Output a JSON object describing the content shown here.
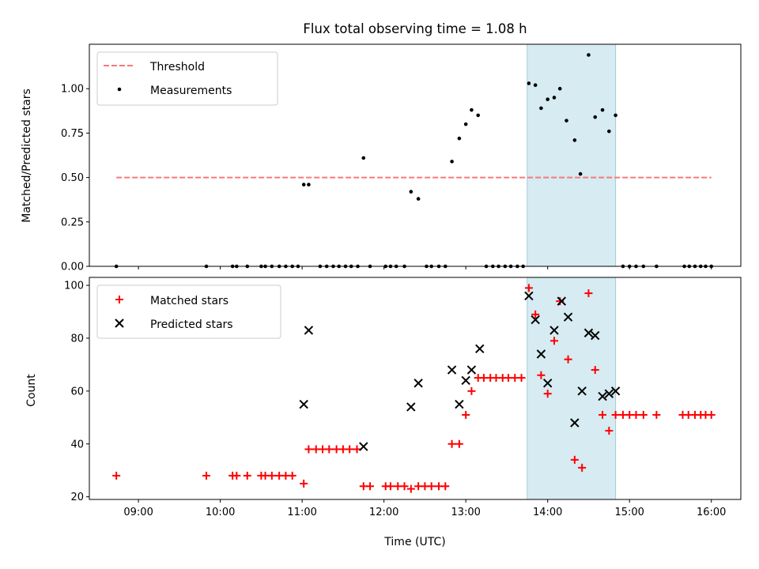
{
  "chart_data": [
    {
      "type": "scatter",
      "title": "Flux total observing time = 1.08 h",
      "ylabel": "Matched/Predicted stars",
      "xlabel": "",
      "xlim": [
        8.4,
        16.36
      ],
      "ylim": [
        0,
        1.25
      ],
      "yticks": [
        0.0,
        0.25,
        0.5,
        0.75,
        1.0
      ],
      "ytick_labels": [
        "0.00",
        "0.25",
        "0.50",
        "0.75",
        "1.00"
      ],
      "grid": false,
      "legend_placement": "top-left",
      "highlight_span": [
        13.75,
        14.83
      ],
      "threshold": {
        "name": "Threshold",
        "y": 0.5,
        "x_range": [
          8.73,
          16.0
        ],
        "color": "#f87878"
      },
      "series": [
        {
          "name": "Measurements",
          "color": "#000000",
          "marker": "dot",
          "points": [
            [
              8.73,
              0
            ],
            [
              9.83,
              0
            ],
            [
              10.15,
              0
            ],
            [
              10.2,
              0
            ],
            [
              10.33,
              0
            ],
            [
              10.5,
              0
            ],
            [
              10.55,
              0
            ],
            [
              10.63,
              0
            ],
            [
              10.72,
              0
            ],
            [
              10.8,
              0
            ],
            [
              10.88,
              0
            ],
            [
              10.95,
              0
            ],
            [
              11.02,
              0.46
            ],
            [
              11.08,
              0.46
            ],
            [
              11.22,
              0
            ],
            [
              11.3,
              0
            ],
            [
              11.38,
              0
            ],
            [
              11.45,
              0
            ],
            [
              11.53,
              0
            ],
            [
              11.6,
              0
            ],
            [
              11.68,
              0
            ],
            [
              11.75,
              0.61
            ],
            [
              11.83,
              0
            ],
            [
              12.02,
              0
            ],
            [
              12.08,
              0
            ],
            [
              12.15,
              0
            ],
            [
              12.25,
              0
            ],
            [
              12.33,
              0.42
            ],
            [
              12.42,
              0.38
            ],
            [
              12.52,
              0
            ],
            [
              12.58,
              0
            ],
            [
              12.67,
              0
            ],
            [
              12.75,
              0
            ],
            [
              12.83,
              0.59
            ],
            [
              12.92,
              0.72
            ],
            [
              13.0,
              0.8
            ],
            [
              13.07,
              0.88
            ],
            [
              13.15,
              0.85
            ],
            [
              13.25,
              0
            ],
            [
              13.33,
              0
            ],
            [
              13.4,
              0
            ],
            [
              13.48,
              0
            ],
            [
              13.55,
              0
            ],
            [
              13.63,
              0
            ],
            [
              13.7,
              0
            ],
            [
              13.77,
              1.03
            ],
            [
              13.85,
              1.02
            ],
            [
              13.92,
              0.89
            ],
            [
              14.0,
              0.94
            ],
            [
              14.08,
              0.95
            ],
            [
              14.15,
              1.0
            ],
            [
              14.23,
              0.82
            ],
            [
              14.33,
              0.71
            ],
            [
              14.4,
              0.52
            ],
            [
              14.5,
              1.19
            ],
            [
              14.58,
              0.84
            ],
            [
              14.67,
              0.88
            ],
            [
              14.75,
              0.76
            ],
            [
              14.83,
              0.85
            ],
            [
              14.92,
              0
            ],
            [
              15.0,
              0
            ],
            [
              15.08,
              0
            ],
            [
              15.17,
              0
            ],
            [
              15.33,
              0
            ],
            [
              15.67,
              0
            ],
            [
              15.73,
              0
            ],
            [
              15.8,
              0
            ],
            [
              15.87,
              0
            ],
            [
              15.93,
              0
            ],
            [
              16.0,
              0
            ]
          ]
        }
      ]
    },
    {
      "type": "scatter",
      "title": "",
      "ylabel": "Count",
      "xlabel": "Time (UTC)",
      "xlim": [
        8.4,
        16.36
      ],
      "ylim": [
        19,
        103
      ],
      "xticks": [
        9,
        10,
        11,
        12,
        13,
        14,
        15,
        16
      ],
      "xtick_labels": [
        "09:00",
        "10:00",
        "11:00",
        "12:00",
        "13:00",
        "14:00",
        "15:00",
        "16:00"
      ],
      "yticks": [
        20,
        40,
        60,
        80,
        100
      ],
      "ytick_labels": [
        "20",
        "40",
        "60",
        "80",
        "100"
      ],
      "grid": false,
      "legend_placement": "top-left",
      "highlight_span": [
        13.75,
        14.83
      ],
      "series": [
        {
          "name": "Matched stars",
          "color": "#ff0000",
          "marker": "plus",
          "points": [
            [
              8.73,
              28
            ],
            [
              9.83,
              28
            ],
            [
              10.15,
              28
            ],
            [
              10.2,
              28
            ],
            [
              10.33,
              28
            ],
            [
              10.5,
              28
            ],
            [
              10.55,
              28
            ],
            [
              10.63,
              28
            ],
            [
              10.72,
              28
            ],
            [
              10.8,
              28
            ],
            [
              10.88,
              28
            ],
            [
              11.02,
              25
            ],
            [
              11.08,
              38
            ],
            [
              11.17,
              38
            ],
            [
              11.25,
              38
            ],
            [
              11.33,
              38
            ],
            [
              11.42,
              38
            ],
            [
              11.5,
              38
            ],
            [
              11.58,
              38
            ],
            [
              11.67,
              38
            ],
            [
              11.75,
              24
            ],
            [
              11.83,
              24
            ],
            [
              12.02,
              24
            ],
            [
              12.08,
              24
            ],
            [
              12.17,
              24
            ],
            [
              12.25,
              24
            ],
            [
              12.33,
              23
            ],
            [
              12.42,
              24
            ],
            [
              12.5,
              24
            ],
            [
              12.58,
              24
            ],
            [
              12.67,
              24
            ],
            [
              12.75,
              24
            ],
            [
              12.83,
              40
            ],
            [
              12.92,
              40
            ],
            [
              13.0,
              51
            ],
            [
              13.07,
              60
            ],
            [
              13.15,
              65
            ],
            [
              13.22,
              65
            ],
            [
              13.3,
              65
            ],
            [
              13.37,
              65
            ],
            [
              13.45,
              65
            ],
            [
              13.52,
              65
            ],
            [
              13.6,
              65
            ],
            [
              13.68,
              65
            ],
            [
              13.77,
              99
            ],
            [
              13.85,
              89
            ],
            [
              13.92,
              66
            ],
            [
              14.0,
              59
            ],
            [
              14.08,
              79
            ],
            [
              14.15,
              94
            ],
            [
              14.25,
              72
            ],
            [
              14.33,
              34
            ],
            [
              14.42,
              31
            ],
            [
              14.5,
              97
            ],
            [
              14.58,
              68
            ],
            [
              14.67,
              51
            ],
            [
              14.75,
              45
            ],
            [
              14.83,
              51
            ],
            [
              14.92,
              51
            ],
            [
              15.0,
              51
            ],
            [
              15.08,
              51
            ],
            [
              15.17,
              51
            ],
            [
              15.33,
              51
            ],
            [
              15.65,
              51
            ],
            [
              15.72,
              51
            ],
            [
              15.8,
              51
            ],
            [
              15.87,
              51
            ],
            [
              15.93,
              51
            ],
            [
              16.0,
              51
            ]
          ]
        },
        {
          "name": "Predicted stars",
          "color": "#000000",
          "marker": "x",
          "points": [
            [
              11.02,
              55
            ],
            [
              11.08,
              83
            ],
            [
              11.75,
              39
            ],
            [
              12.33,
              54
            ],
            [
              12.42,
              63
            ],
            [
              12.83,
              68
            ],
            [
              12.92,
              55
            ],
            [
              13.0,
              64
            ],
            [
              13.07,
              68
            ],
            [
              13.17,
              76
            ],
            [
              13.77,
              96
            ],
            [
              13.85,
              87
            ],
            [
              13.92,
              74
            ],
            [
              14.0,
              63
            ],
            [
              14.08,
              83
            ],
            [
              14.17,
              94
            ],
            [
              14.25,
              88
            ],
            [
              14.33,
              48
            ],
            [
              14.42,
              60
            ],
            [
              14.5,
              82
            ],
            [
              14.58,
              81
            ],
            [
              14.67,
              58
            ],
            [
              14.75,
              59
            ],
            [
              14.83,
              60
            ]
          ]
        }
      ]
    }
  ]
}
